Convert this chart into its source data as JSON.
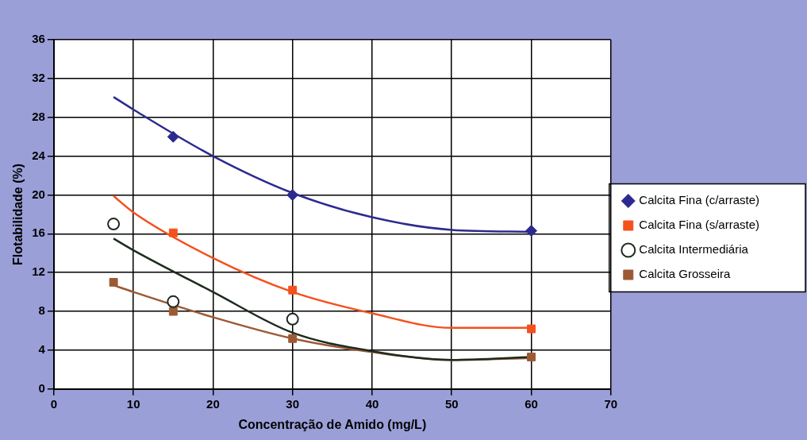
{
  "chart_data": {
    "type": "scatter",
    "xlabel": "Concentração de Amido (mg/L)",
    "ylabel": "Flotabilidade (%)",
    "xlim": [
      0,
      70
    ],
    "xticks": [
      0,
      10,
      20,
      30,
      40,
      50,
      60,
      70
    ],
    "ylim": [
      0,
      36
    ],
    "yticks": [
      0,
      4,
      8,
      12,
      16,
      20,
      24,
      28,
      32,
      36
    ],
    "grid": true,
    "legend": "right",
    "series": [
      {
        "name": "Calcita Fina (c/arraste)",
        "color": "#2b2b8f",
        "marker": "diamond",
        "x": [
          15,
          30,
          60
        ],
        "values": [
          26,
          20,
          16.3
        ]
      },
      {
        "name": "Calcita Fina (s/arraste)",
        "color": "#f4511e",
        "marker": "square",
        "x": [
          15,
          30,
          60
        ],
        "values": [
          16.1,
          10.2,
          6.2
        ]
      },
      {
        "name": "Calcita Intermediária",
        "color": "#1e2b1e",
        "marker": "circle",
        "x": [
          7.5,
          15,
          30
        ],
        "values": [
          17,
          9,
          7.2
        ]
      },
      {
        "name": "Calcita Grosseira",
        "color": "#9c5a34",
        "marker": "square",
        "x": [
          7.5,
          15,
          30,
          60
        ],
        "values": [
          11,
          8,
          5.2,
          3.3
        ]
      },
      {
        "type": "line",
        "color": "#2b2b8f",
        "marker": "none",
        "x": [
          7.5,
          10,
          20,
          30,
          40,
          50,
          60
        ],
        "values": [
          30.1,
          28.8,
          24,
          20.2,
          17.7,
          16.4,
          16.2
        ]
      },
      {
        "type": "line",
        "color": "#f4511e",
        "marker": "none",
        "x": [
          7.5,
          10,
          20,
          30,
          40,
          50,
          60
        ],
        "values": [
          19.9,
          18.2,
          13.5,
          10,
          7.8,
          6.3,
          6.3
        ]
      },
      {
        "type": "line",
        "color": "#1e2b1e",
        "marker": "none",
        "x": [
          7.5,
          10,
          20,
          30,
          40,
          50,
          60
        ],
        "values": [
          15.5,
          14.3,
          10,
          5.8,
          3.9,
          3,
          3.3
        ]
      },
      {
        "type": "line",
        "color": "#9c5a34",
        "marker": "none",
        "x": [
          7.5,
          10,
          20,
          30,
          40,
          50,
          60
        ],
        "values": [
          10.7,
          10,
          7.4,
          5.2,
          3.8,
          3,
          3.2
        ]
      }
    ]
  }
}
